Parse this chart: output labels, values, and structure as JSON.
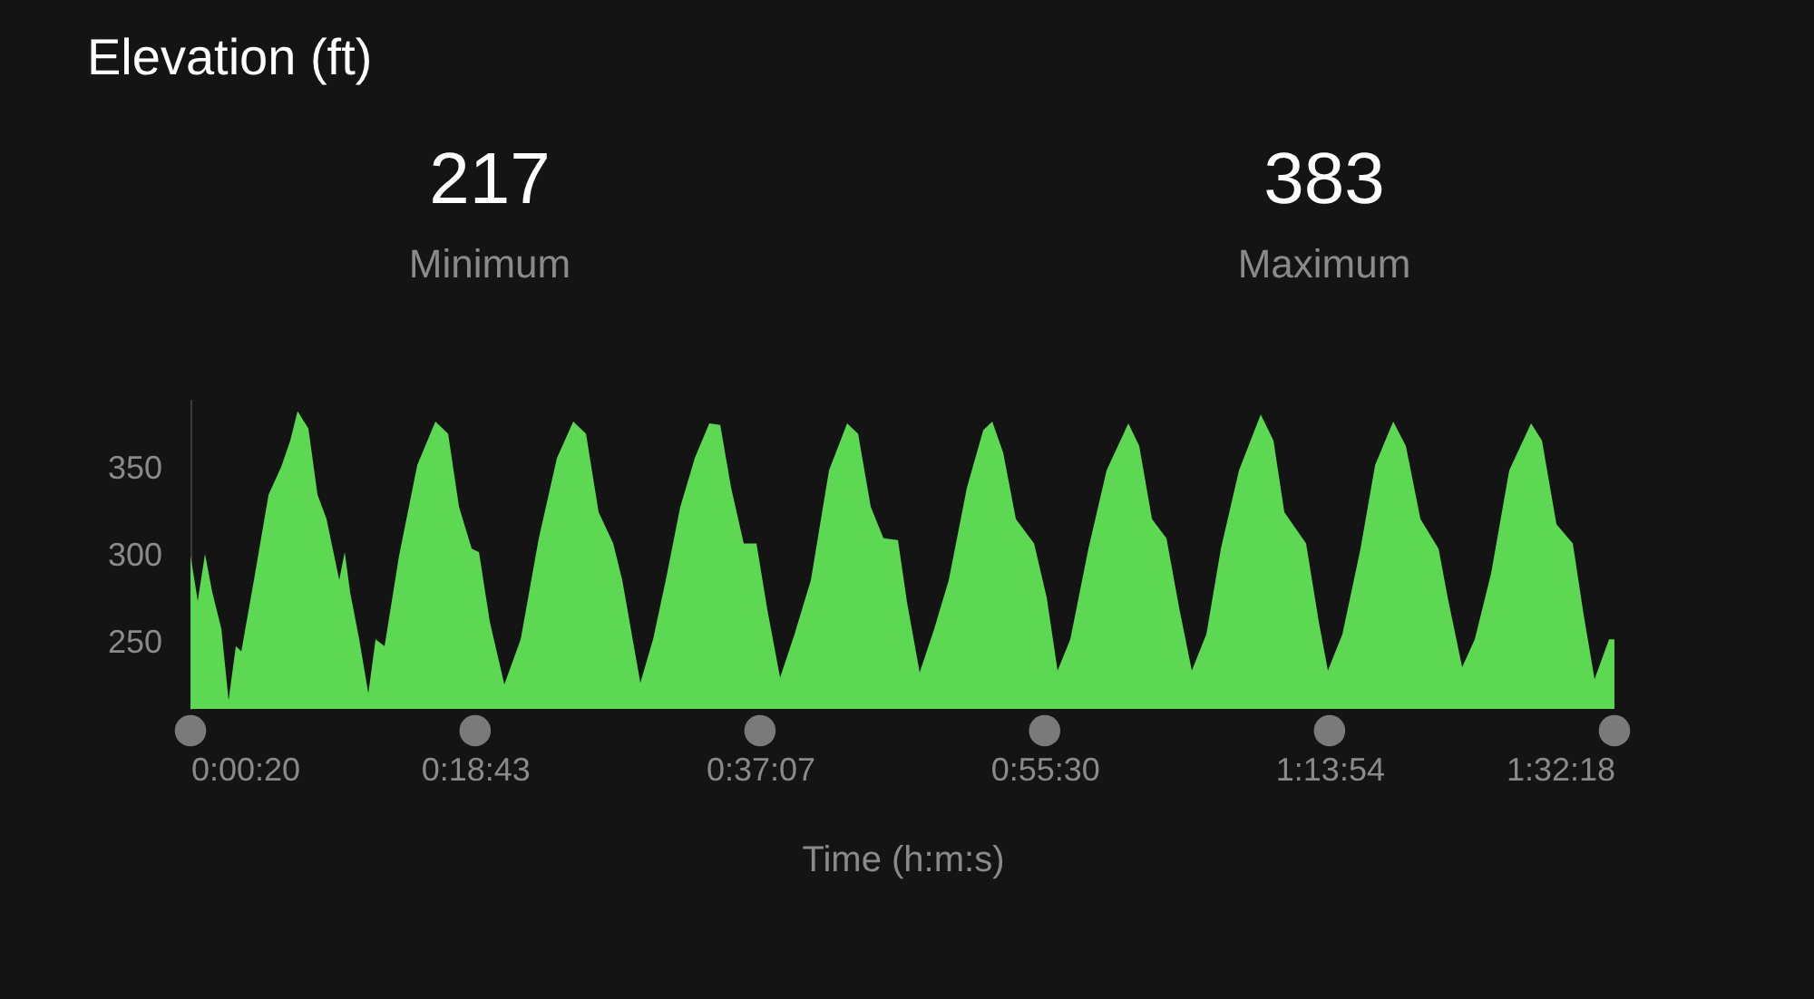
{
  "chart_data": {
    "type": "area",
    "title": "Elevation (ft)",
    "xlabel": "Time (h:m:s)",
    "annotations": [
      "217",
      "Minimum",
      "383",
      "Maximum"
    ],
    "x": [
      0.0056,
      0.0134,
      0.0212,
      0.029,
      0.0388,
      0.0466,
      0.0544,
      0.0603,
      0.0739,
      0.0896,
      0.1032,
      0.113,
      0.1208,
      0.1325,
      0.1423,
      0.152,
      0.1657,
      0.1716,
      0.1774,
      0.1872,
      0.197,
      0.2048,
      0.2145,
      0.2301,
      0.2497,
      0.2692,
      0.2829,
      0.2946,
      0.3083,
      0.3161,
      0.3278,
      0.3434,
      0.361,
      0.3805,
      0.4,
      0.4176,
      0.4313,
      0.4449,
      0.4606,
      0.4703,
      0.4898,
      0.5035,
      0.5172,
      0.5328,
      0.5484,
      0.564,
      0.5758,
      0.5875,
      0.6011,
      0.6148,
      0.6265,
      0.6402,
      0.6558,
      0.6734,
      0.6929,
      0.7124,
      0.7242,
      0.7378,
      0.7515,
      0.7671,
      0.7769,
      0.7905,
      0.8062,
      0.8218,
      0.8413,
      0.8589,
      0.8686,
      0.8804,
      0.894,
      0.9136,
      0.9272,
      0.9389,
      0.9526,
      0.9721,
      0.9917,
      1.0151,
      1.0268,
      1.0405,
      1.0561,
      1.0698,
      1.0834,
      1.0991,
      1.1147,
      1.1342,
      1.1576,
      1.1713,
      1.183,
      1.2064,
      1.2201,
      1.2299,
      1.2455,
      1.265,
      1.2807,
      1.3002,
      1.3138,
      1.3295,
      1.349,
      1.3588,
      1.3744,
      1.388,
      1.4056,
      1.4251,
      1.4486,
      1.4603,
      1.4759,
      1.4935,
      1.5052,
      1.5169,
      1.5325,
      1.5383
    ],
    "series": [
      {
        "color": "#5cd852",
        "values": [
          300,
          274,
          301,
          279,
          258,
          217,
          248,
          245,
          286,
          335,
          351,
          366,
          383,
          373,
          335,
          321,
          286,
          302,
          279,
          252,
          221,
          252,
          248,
          300,
          352,
          377,
          370,
          328,
          304,
          302,
          262,
          226,
          252,
          310,
          356,
          377,
          370,
          325,
          307,
          286,
          227,
          252,
          286,
          328,
          356,
          376,
          375,
          339,
          307,
          307,
          269,
          230,
          255,
          286,
          349,
          376,
          370,
          328,
          310,
          309,
          273,
          233,
          258,
          286,
          339,
          372,
          377,
          359,
          321,
          307,
          276,
          234,
          252,
          304,
          349,
          376,
          363,
          321,
          310,
          270,
          234,
          255,
          304,
          349,
          381,
          366,
          325,
          307,
          262,
          234,
          255,
          304,
          352,
          377,
          363,
          321,
          304,
          276,
          236,
          252,
          290,
          349,
          376,
          366,
          318,
          307,
          266,
          229,
          252,
          252
        ]
      }
    ],
    "xlim": [
      0.005556,
      1.538333
    ],
    "ylim": [
      212,
      390
    ],
    "xticks": [
      {
        "value": 0.005556,
        "label": "0:00:20"
      },
      {
        "value": 0.311944,
        "label": "0:18:43"
      },
      {
        "value": 0.618611,
        "label": "0:37:07"
      },
      {
        "value": 0.925,
        "label": "0:55:30"
      },
      {
        "value": 1.231667,
        "label": "1:13:54"
      },
      {
        "value": 1.538333,
        "label": "1:32:18"
      }
    ],
    "yticks": [
      250,
      300,
      350
    ],
    "grid": false
  }
}
